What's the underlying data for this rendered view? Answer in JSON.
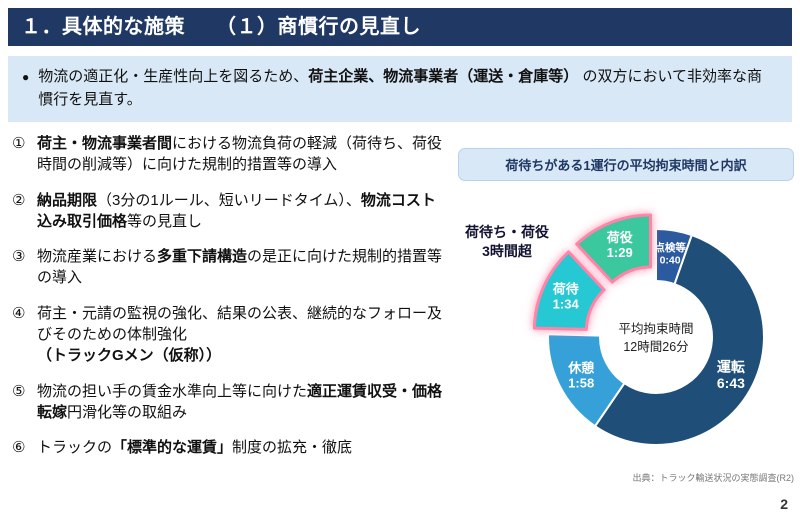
{
  "page": {
    "title": "１．具体的な施策　　（１）商慣行の見直し",
    "page_number": "2"
  },
  "summary": {
    "bullet": "●",
    "parts": [
      {
        "text": "物流の適正化・生産性向上を図るため、",
        "bold": false
      },
      {
        "text": "荷主企業、物流事業者（運送・倉庫等）",
        "bold": true
      },
      {
        "text": " の双方において非効率な商慣行を見直す。",
        "bold": false
      }
    ]
  },
  "list": {
    "items": [
      {
        "number": "①",
        "parts": [
          {
            "text": "荷主・物流事業者間",
            "bold": true
          },
          {
            "text": "における物流負荷の軽減（荷待ち、荷役時間の削減等）に向けた規制的措置等の導入",
            "bold": false
          }
        ]
      },
      {
        "number": "②",
        "parts": [
          {
            "text": "納品期限",
            "bold": true
          },
          {
            "text": "（3分の1ルール、短いリードタイム）、",
            "bold": false
          },
          {
            "text": "物流コスト込み取引価格",
            "bold": true
          },
          {
            "text": "等の見直し",
            "bold": false
          }
        ]
      },
      {
        "number": "③",
        "parts": [
          {
            "text": "物流産業における",
            "bold": false
          },
          {
            "text": "多重下請構造",
            "bold": true
          },
          {
            "text": "の是正に向けた規制的措置等の導入",
            "bold": false
          }
        ]
      },
      {
        "number": "④",
        "parts": [
          {
            "text": "荷主・元請の監視の強化、結果の公表、継続的なフォロー及びそのための体制強化\n",
            "bold": false
          },
          {
            "text": "（トラックGメン（仮称））",
            "bold": true
          }
        ]
      },
      {
        "number": "⑤",
        "parts": [
          {
            "text": "物流の担い手の賃金水準向上等に向けた",
            "bold": false
          },
          {
            "text": "適正運賃収受・価格転嫁",
            "bold": true
          },
          {
            "text": "円滑化等の取組み",
            "bold": false
          }
        ]
      },
      {
        "number": "⑥",
        "parts": [
          {
            "text": "トラックの",
            "bold": false
          },
          {
            "text": "「標準的な運賃」",
            "bold": true
          },
          {
            "text": "制度の拡充・徹底",
            "bold": false
          }
        ]
      }
    ]
  },
  "chart_data": {
    "type": "pie",
    "title": "荷待ちがある1運行の平均拘束時間と内訳",
    "center_label": {
      "line1": "平均拘束時間",
      "line2": "12時間26分"
    },
    "callout": {
      "line1": "荷待ち・荷役",
      "line2": "3時間超"
    },
    "source": "出典：トラック輸送状況の実態調査(R2)",
    "total_label_minutes": 746,
    "highlight_color": "#ff84a7",
    "legend_position": "none",
    "slices": [
      {
        "label": "点検等",
        "time": "0:40",
        "minutes": 40,
        "color": "#2b5a9f",
        "exploded": false
      },
      {
        "label": "運転",
        "time": "6:43",
        "minutes": 403,
        "color": "#1f4e79",
        "exploded": false
      },
      {
        "label": "休憩",
        "time": "1:58",
        "minutes": 118,
        "color": "#36a0d9",
        "exploded": false
      },
      {
        "label": "荷待",
        "time": "1:34",
        "minutes": 94,
        "color": "#27c8d4",
        "exploded": true
      },
      {
        "label": "荷役",
        "time": "1:29",
        "minutes": 89,
        "color": "#3bc89e",
        "exploded": true
      }
    ]
  }
}
